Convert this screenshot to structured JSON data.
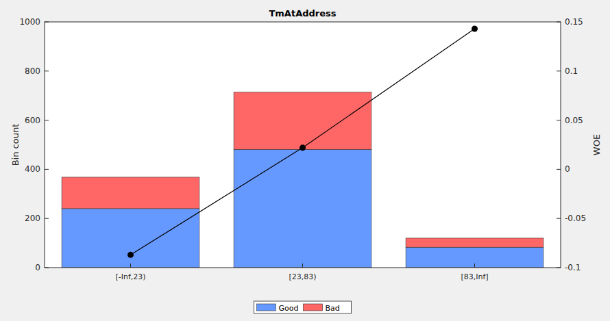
{
  "chart_data": {
    "type": "bar",
    "title": "TmAtAddress",
    "y_label": "Bin count",
    "y2_label": "WOE",
    "categories": [
      "[-Inf,23)",
      "[23,83)",
      "[83,Inf]"
    ],
    "stacked": true,
    "grid": false,
    "legend": "bottom",
    "series": [
      {
        "name": "Good",
        "color": "#6699ff",
        "values": [
          240,
          481,
          83
        ]
      },
      {
        "name": "Bad",
        "color": "#ff6666",
        "values": [
          128,
          233,
          37
        ]
      },
      {
        "name": "WOE",
        "type": "line",
        "axis": "y2",
        "color": "#000000",
        "marker": "circle",
        "values": [
          -0.087,
          0.022,
          0.143
        ]
      }
    ],
    "ylim": [
      0,
      1000
    ],
    "yticks": [
      0,
      200,
      400,
      600,
      800,
      1000
    ],
    "y2lim": [
      -0.1,
      0.15
    ],
    "y2ticks": [
      -0.1,
      -0.05,
      0,
      0.05,
      0.1,
      0.15
    ]
  }
}
